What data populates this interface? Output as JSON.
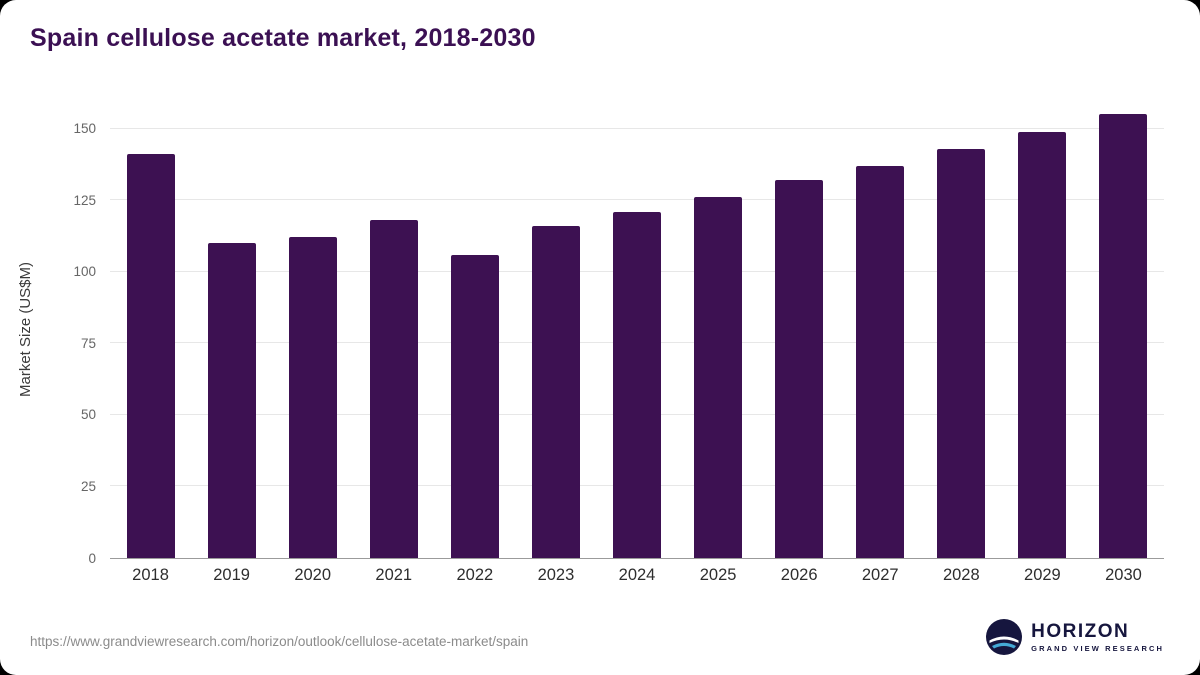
{
  "title": "Spain cellulose acetate market, 2018-2030",
  "footer": {
    "source_url": "https://www.grandviewresearch.com/horizon/outlook/cellulose-acetate-market/spain",
    "logo_name": "HORIZON",
    "logo_subtitle": "GRAND VIEW RESEARCH"
  },
  "colors": {
    "bar": "#3d1152",
    "title": "#3b1053",
    "grid": "#e7e7e7",
    "axis_line": "#9b9b9b",
    "logo_navy": "#16163e",
    "logo_blue": "#45aad6"
  },
  "chart_data": {
    "type": "bar",
    "title": "Spain cellulose acetate market, 2018-2030",
    "categories": [
      "2018",
      "2019",
      "2020",
      "2021",
      "2022",
      "2023",
      "2024",
      "2025",
      "2026",
      "2027",
      "2028",
      "2029",
      "2030"
    ],
    "values": [
      141,
      110,
      112,
      118,
      106,
      116,
      121,
      126,
      132,
      137,
      143,
      149,
      155
    ],
    "xlabel": "",
    "ylabel": "Market Size (US$M)",
    "ylim": [
      0,
      160
    ],
    "yticks": [
      0,
      25,
      50,
      75,
      100,
      125,
      150
    ],
    "grid": "horizontal",
    "legend": "none",
    "bar_color": "#3d1152"
  }
}
